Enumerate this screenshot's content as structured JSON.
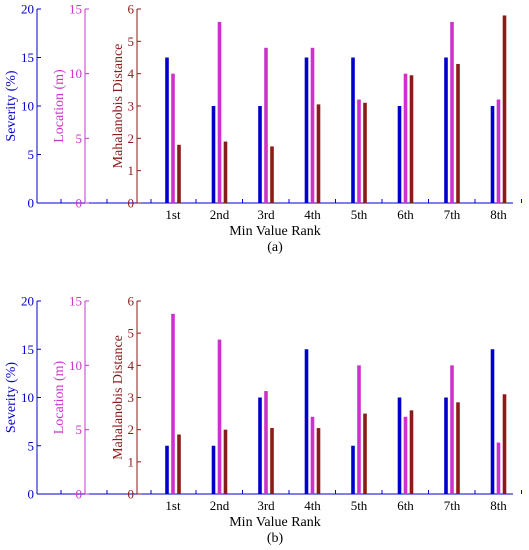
{
  "colors": {
    "severity": "#0000cc",
    "location": "#cc33cc",
    "mahalanobis": "#8b1a1a"
  },
  "chart_data": [
    {
      "type": "bar",
      "panel_label": "(a)",
      "xlabel": "Min Value Rank",
      "categories": [
        "1st",
        "2nd",
        "3rd",
        "4th",
        "5th",
        "6th",
        "7th",
        "8th"
      ],
      "axes": [
        {
          "label": "Severity (%)",
          "range": [
            0,
            20
          ],
          "ticks": [
            0,
            5,
            10,
            15,
            20
          ]
        },
        {
          "label": "Location (m)",
          "range": [
            0,
            15
          ],
          "ticks": [
            0,
            5,
            10,
            15
          ]
        },
        {
          "label": "Mahalanobis Distance",
          "range": [
            0,
            6
          ],
          "ticks": [
            0,
            1,
            2,
            3,
            4,
            5,
            6
          ]
        }
      ],
      "series": [
        {
          "name": "Severity (%)",
          "values": [
            15,
            10,
            10,
            15,
            15,
            10,
            15,
            10
          ]
        },
        {
          "name": "Location (m)",
          "values": [
            10,
            14,
            12,
            12,
            8,
            10,
            14,
            8
          ]
        },
        {
          "name": "Mahalanobis Distance",
          "values": [
            1.8,
            1.9,
            1.75,
            3.05,
            3.1,
            3.95,
            4.3,
            5.8
          ]
        }
      ]
    },
    {
      "type": "bar",
      "panel_label": "(b)",
      "xlabel": "Min Value Rank",
      "categories": [
        "1st",
        "2nd",
        "3rd",
        "4th",
        "5th",
        "6th",
        "7th",
        "8th"
      ],
      "axes": [
        {
          "label": "Severity (%)",
          "range": [
            0,
            20
          ],
          "ticks": [
            0,
            5,
            10,
            15,
            20
          ]
        },
        {
          "label": "Location (m)",
          "range": [
            0,
            15
          ],
          "ticks": [
            0,
            5,
            10,
            15
          ]
        },
        {
          "label": "Mahalanobis Distance",
          "range": [
            0,
            6
          ],
          "ticks": [
            0,
            1,
            2,
            3,
            4,
            5,
            6
          ]
        }
      ],
      "series": [
        {
          "name": "Severity (%)",
          "values": [
            5,
            5,
            10,
            15,
            5,
            10,
            10,
            15
          ]
        },
        {
          "name": "Location (m)",
          "values": [
            14,
            12,
            8,
            6,
            10,
            6,
            10,
            4
          ]
        },
        {
          "name": "Mahalanobis Distance",
          "values": [
            1.85,
            2.0,
            2.05,
            2.05,
            2.5,
            2.6,
            2.85,
            3.1
          ]
        }
      ]
    }
  ]
}
